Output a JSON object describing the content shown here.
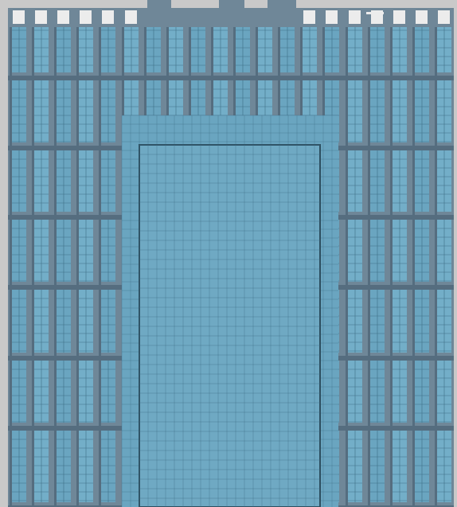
{
  "colors": {
    "background": "#c9c9c9",
    "frame": "#6f8798",
    "frame_dark": "#556d7f",
    "glass": "#6aa5c0",
    "glass_alt": "#73aec8",
    "grid_line": "#3f6f86",
    "opening_frame": "#2d4f60",
    "opening_glass": "#6fa9c3"
  }
}
